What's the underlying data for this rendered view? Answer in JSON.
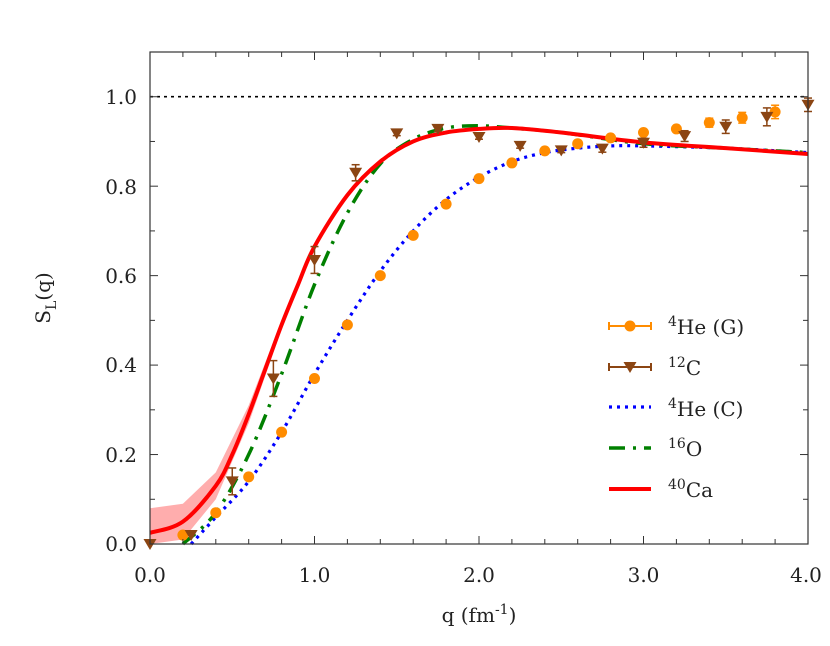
{
  "chart_data": {
    "type": "line",
    "xlabel": "q (fm",
    "xlabel_sup": "-1",
    "xlabel_end": ")",
    "ylabel": "S",
    "ylabel_sub": "L",
    "ylabel_end": "(q)",
    "xlim": [
      0,
      4.0
    ],
    "ylim": [
      0,
      1.1
    ],
    "xticks": [
      "0.0",
      "1.0",
      "2.0",
      "3.0",
      "4.0"
    ],
    "yticks": [
      "0.0",
      "0.2",
      "0.4",
      "0.6",
      "0.8",
      "1.0"
    ],
    "reference_line": {
      "y": 1.0,
      "style": "dotted",
      "color": "#000000"
    },
    "legend_position": "bottom-right",
    "series": [
      {
        "key": "heG",
        "name_sup": "4",
        "name": "He (G)",
        "kind": "points",
        "marker": "circle",
        "color": "#ff8c00",
        "x": [
          0.2,
          0.4,
          0.6,
          0.8,
          1.0,
          1.2,
          1.4,
          1.6,
          1.8,
          2.0,
          2.2,
          2.4,
          2.6,
          2.8,
          3.0,
          3.2,
          3.4,
          3.6,
          3.8
        ],
        "y": [
          0.02,
          0.07,
          0.15,
          0.25,
          0.37,
          0.49,
          0.6,
          0.69,
          0.76,
          0.817,
          0.852,
          0.879,
          0.895,
          0.908,
          0.92,
          0.928,
          0.942,
          0.953,
          0.966
        ],
        "yerr": [
          0,
          0,
          0,
          0,
          0,
          0,
          0,
          0,
          0,
          0,
          0,
          0,
          0,
          0,
          0,
          0,
          0.01,
          0.012,
          0.015
        ]
      },
      {
        "key": "c12",
        "name_sup": "12",
        "name": "C",
        "kind": "points",
        "marker": "triangle-down",
        "color": "#8b4513",
        "x": [
          0.0,
          0.25,
          0.5,
          0.75,
          1.0,
          1.25,
          1.5,
          1.75,
          2.0,
          2.25,
          2.5,
          2.75,
          3.0,
          3.25,
          3.5,
          3.75,
          4.0
        ],
        "y": [
          0.0,
          0.02,
          0.14,
          0.37,
          0.635,
          0.83,
          0.918,
          0.928,
          0.91,
          0.89,
          0.88,
          0.884,
          0.897,
          0.912,
          0.933,
          0.955,
          0.982
        ],
        "yerr": [
          0,
          0,
          0.03,
          0.04,
          0.03,
          0.018,
          0.005,
          0.005,
          0.005,
          0.005,
          0.005,
          0.008,
          0.01,
          0.012,
          0.015,
          0.02,
          0.015
        ]
      },
      {
        "key": "heC",
        "name_sup": "4",
        "name": "He (C)",
        "kind": "line",
        "style": "dotted",
        "color": "#0000ff",
        "x": [
          0.25,
          0.4,
          0.6,
          0.8,
          1.0,
          1.2,
          1.4,
          1.6,
          1.8,
          2.0,
          2.2,
          2.4,
          2.6,
          2.8,
          3.0,
          3.5,
          4.0
        ],
        "y": [
          0.0,
          0.06,
          0.14,
          0.25,
          0.38,
          0.5,
          0.61,
          0.7,
          0.77,
          0.82,
          0.855,
          0.875,
          0.885,
          0.89,
          0.89,
          0.885,
          0.875
        ]
      },
      {
        "key": "o16",
        "name_sup": "16",
        "name": "O",
        "kind": "line",
        "style": "dashdot",
        "color": "#008000",
        "x": [
          0.2,
          0.4,
          0.6,
          0.8,
          1.0,
          1.2,
          1.4,
          1.6,
          1.8,
          2.0,
          2.2,
          2.5,
          3.0,
          3.5,
          4.0
        ],
        "y": [
          0.0,
          0.07,
          0.2,
          0.38,
          0.58,
          0.74,
          0.85,
          0.905,
          0.93,
          0.935,
          0.93,
          0.92,
          0.895,
          0.885,
          0.875
        ]
      },
      {
        "key": "ca40",
        "name_sup": "40",
        "name": "Ca",
        "kind": "line",
        "style": "solid",
        "color": "#ff0000",
        "x": [
          0.0,
          0.2,
          0.4,
          0.5,
          0.6,
          0.7,
          0.8,
          0.9,
          1.0,
          1.2,
          1.4,
          1.6,
          1.8,
          2.0,
          2.2,
          2.5,
          3.0,
          3.5,
          4.0
        ],
        "y": [
          0.025,
          0.05,
          0.13,
          0.2,
          0.29,
          0.39,
          0.49,
          0.58,
          0.665,
          0.78,
          0.855,
          0.9,
          0.92,
          0.928,
          0.93,
          0.92,
          0.898,
          0.885,
          0.872
        ],
        "band": {
          "x": [
            0.0,
            0.2,
            0.4,
            0.6,
            0.8
          ],
          "lower": [
            0.0,
            0.01,
            0.1,
            0.27,
            0.48
          ],
          "upper": [
            0.08,
            0.09,
            0.16,
            0.31,
            0.5
          ],
          "color": "#ff9999"
        }
      }
    ]
  }
}
